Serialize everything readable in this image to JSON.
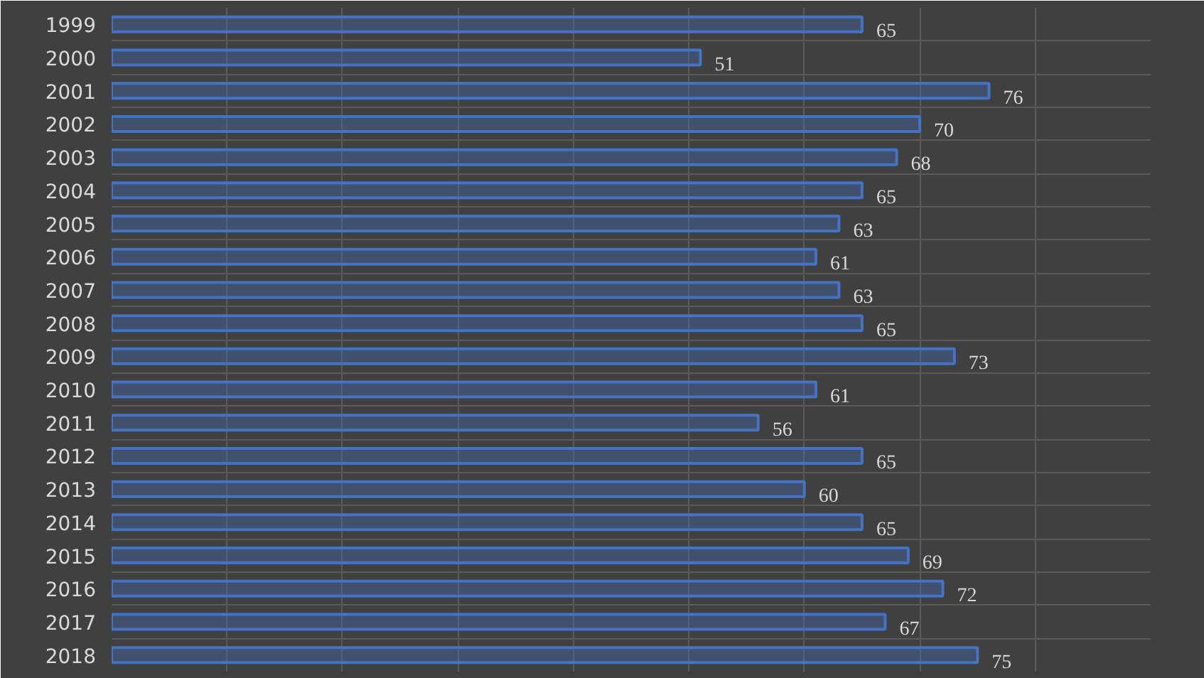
{
  "chart_data": {
    "type": "bar",
    "orientation": "horizontal",
    "categories": [
      "1999",
      "2000",
      "2001",
      "2002",
      "2003",
      "2004",
      "2005",
      "2006",
      "2007",
      "2008",
      "2009",
      "2010",
      "2011",
      "2012",
      "2013",
      "2014",
      "2015",
      "2016",
      "2017",
      "2018"
    ],
    "values": [
      65,
      51,
      76,
      70,
      68,
      65,
      63,
      61,
      63,
      65,
      73,
      61,
      56,
      65,
      60,
      65,
      69,
      72,
      67,
      75
    ],
    "color": "#4472c4",
    "data_labels": true,
    "grid": true,
    "tick_labels": "y",
    "xlim": [
      0,
      90
    ],
    "xticks": [
      {
        "value": 0,
        "label": null
      },
      {
        "value": 10,
        "label": null
      },
      {
        "value": 20,
        "label": null
      },
      {
        "value": 30,
        "label": null
      },
      {
        "value": 40,
        "label": null
      },
      {
        "value": 50,
        "label": null
      },
      {
        "value": 60,
        "label": null
      },
      {
        "value": 70,
        "label": null
      },
      {
        "value": 80,
        "label": null
      },
      {
        "value": 90,
        "label": null
      }
    ]
  }
}
